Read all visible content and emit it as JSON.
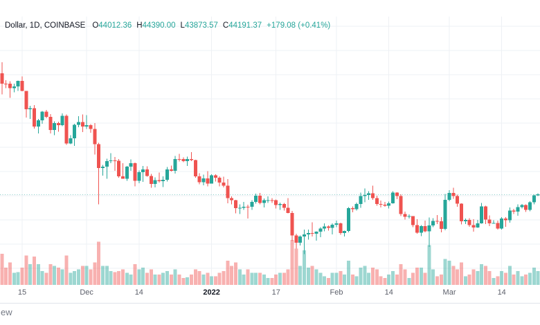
{
  "legend": {
    "title": "Dollar, 1D, COINBASE",
    "items": [
      {
        "label": "O",
        "value": "44012.36"
      },
      {
        "label": "H",
        "value": "44390.00"
      },
      {
        "label": "L",
        "value": "43873.57"
      },
      {
        "label": "C",
        "value": "44191.37"
      }
    ],
    "change": "+179.08 (+0.41%)"
  },
  "watermark": {
    "text": "ew"
  },
  "colors": {
    "up": "#26a69a",
    "down": "#ef5350",
    "volume_opacity": 0.45,
    "grid": "#eef0f4",
    "price_line": "#26a69a",
    "axis_text": "#5d606b",
    "year_text": "#131722",
    "legend_text": "#131722",
    "legend_value": "#26a69a",
    "separator": "#e0e3eb",
    "background": "#ffffff",
    "watermark_text": "#757a85"
  },
  "chart_data": {
    "type": "candlestick",
    "title": "Dollar, 1D, COINBASE",
    "xlabel": "",
    "ylabel": "",
    "legend_position": "top-left",
    "grid": "on",
    "price_line": 44191.37,
    "volume_note": "relative bar heights; volume pane unlabeled in screenshot",
    "x_axis_labels": [
      {
        "text": "15",
        "date": "2021-11-15",
        "emphasis": false
      },
      {
        "text": "Dec",
        "date": "2021-12-01",
        "emphasis": false
      },
      {
        "text": "14",
        "date": "2021-12-14",
        "emphasis": false
      },
      {
        "text": "2022",
        "date": "2022-01-01",
        "emphasis": true
      },
      {
        "text": "17",
        "date": "2022-01-17",
        "emphasis": false
      },
      {
        "text": "Feb",
        "date": "2022-02-01",
        "emphasis": false
      },
      {
        "text": "14",
        "date": "2022-02-14",
        "emphasis": false
      },
      {
        "text": "Mar",
        "date": "2022-03-01",
        "emphasis": false
      },
      {
        "text": "14",
        "date": "2022-03-14",
        "emphasis": false
      }
    ],
    "candles": [
      [
        "2021-11-10",
        66943,
        69000,
        62950,
        64995,
        36
      ],
      [
        "2021-11-11",
        64995,
        65600,
        64110,
        64949,
        20
      ],
      [
        "2021-11-12",
        64949,
        65450,
        62300,
        64155,
        26
      ],
      [
        "2021-11-13",
        64155,
        64985,
        63360,
        64469,
        14
      ],
      [
        "2021-11-14",
        64469,
        65550,
        63590,
        65519,
        15
      ],
      [
        "2021-11-15",
        65519,
        66339,
        63560,
        63606,
        20
      ],
      [
        "2021-11-16",
        63606,
        63617,
        58638,
        60161,
        34
      ],
      [
        "2021-11-17",
        60161,
        60840,
        58373,
        60368,
        24
      ],
      [
        "2021-11-18",
        60368,
        60948,
        56550,
        56942,
        33
      ],
      [
        "2021-11-19",
        56942,
        58320,
        55600,
        58119,
        24
      ],
      [
        "2021-11-20",
        58119,
        59859,
        57469,
        59697,
        16
      ],
      [
        "2021-11-21",
        59697,
        60029,
        58487,
        58730,
        14
      ],
      [
        "2021-11-22",
        58730,
        59266,
        55610,
        56289,
        24
      ],
      [
        "2021-11-23",
        56289,
        57875,
        55317,
        57569,
        22
      ],
      [
        "2021-11-24",
        57569,
        57803,
        55964,
        57187,
        20
      ],
      [
        "2021-11-25",
        57187,
        59398,
        57000,
        58960,
        18
      ],
      [
        "2021-11-26",
        58960,
        59183,
        53500,
        53726,
        34
      ],
      [
        "2021-11-27",
        53726,
        55280,
        53610,
        54721,
        14
      ],
      [
        "2021-11-28",
        54721,
        57445,
        53256,
        57274,
        16
      ],
      [
        "2021-11-29",
        57274,
        58865,
        56780,
        57776,
        18
      ],
      [
        "2021-11-30",
        57776,
        59200,
        55875,
        56950,
        22
      ],
      [
        "2021-12-01",
        56950,
        59053,
        56458,
        57184,
        22
      ],
      [
        "2021-12-02",
        57184,
        57375,
        55777,
        56486,
        18
      ],
      [
        "2021-12-03",
        56486,
        57600,
        51680,
        53601,
        26
      ],
      [
        "2021-12-04",
        53601,
        53859,
        42333,
        49152,
        50
      ],
      [
        "2021-12-05",
        49152,
        49699,
        47727,
        49396,
        22
      ],
      [
        "2021-12-06",
        49396,
        50891,
        47130,
        50441,
        22
      ],
      [
        "2021-12-07",
        50441,
        51936,
        50039,
        50588,
        16
      ],
      [
        "2021-12-08",
        50588,
        51175,
        48638,
        50471,
        15
      ],
      [
        "2021-12-09",
        50471,
        50797,
        47320,
        47545,
        16
      ],
      [
        "2021-12-10",
        47545,
        50015,
        47100,
        47140,
        18
      ],
      [
        "2021-12-11",
        47140,
        49485,
        46751,
        49389,
        14
      ],
      [
        "2021-12-12",
        49389,
        50777,
        48638,
        50053,
        12
      ],
      [
        "2021-12-13",
        50053,
        50189,
        45672,
        46702,
        24
      ],
      [
        "2021-12-14",
        46702,
        48650,
        46290,
        48343,
        18
      ],
      [
        "2021-12-15",
        48343,
        49500,
        46547,
        48864,
        20
      ],
      [
        "2021-12-16",
        48864,
        49436,
        47511,
        47632,
        14
      ],
      [
        "2021-12-17",
        47632,
        47995,
        45456,
        46133,
        18
      ],
      [
        "2021-12-18",
        46133,
        47392,
        45500,
        46834,
        12
      ],
      [
        "2021-12-19",
        46834,
        48280,
        46424,
        46681,
        12
      ],
      [
        "2021-12-20",
        46681,
        47537,
        45558,
        46914,
        14
      ],
      [
        "2021-12-21",
        46914,
        49328,
        46620,
        48889,
        16
      ],
      [
        "2021-12-22",
        48889,
        49576,
        48450,
        48588,
        12
      ],
      [
        "2021-12-23",
        48588,
        51375,
        48073,
        50838,
        18
      ],
      [
        "2021-12-24",
        50838,
        51810,
        50384,
        50820,
        12
      ],
      [
        "2021-12-25",
        50820,
        51170,
        50240,
        50429,
        8
      ],
      [
        "2021-12-26",
        50429,
        51280,
        49520,
        50809,
        9
      ],
      [
        "2021-12-27",
        50809,
        52088,
        50449,
        50640,
        12
      ],
      [
        "2021-12-28",
        50640,
        50704,
        47313,
        47588,
        18
      ],
      [
        "2021-12-29",
        47588,
        48139,
        46096,
        46464,
        16
      ],
      [
        "2021-12-30",
        46464,
        47900,
        45900,
        47178,
        12
      ],
      [
        "2021-12-31",
        47178,
        48548,
        45678,
        46216,
        14
      ],
      [
        "2022-01-01",
        46216,
        47954,
        46208,
        47742,
        10
      ],
      [
        "2022-01-02",
        47742,
        47990,
        46602,
        47311,
        10
      ],
      [
        "2022-01-03",
        47311,
        47578,
        45700,
        46430,
        14
      ],
      [
        "2022-01-04",
        46430,
        47510,
        45515,
        45832,
        16
      ],
      [
        "2022-01-05",
        45832,
        47070,
        42500,
        43451,
        28
      ],
      [
        "2022-01-06",
        43451,
        43800,
        42311,
        43082,
        22
      ],
      [
        "2022-01-07",
        43082,
        43153,
        40610,
        41566,
        26
      ],
      [
        "2022-01-08",
        41566,
        42300,
        40501,
        41679,
        18
      ],
      [
        "2022-01-09",
        41679,
        42786,
        41272,
        41864,
        12
      ],
      [
        "2022-01-10",
        41864,
        42250,
        39650,
        41822,
        18
      ],
      [
        "2022-01-11",
        41822,
        43100,
        41280,
        42735,
        14
      ],
      [
        "2022-01-12",
        42735,
        44322,
        42470,
        43902,
        14
      ],
      [
        "2022-01-13",
        43902,
        44450,
        42311,
        42560,
        14
      ],
      [
        "2022-01-14",
        42560,
        43436,
        41750,
        43073,
        12
      ],
      [
        "2022-01-15",
        43073,
        43800,
        42586,
        43092,
        8
      ],
      [
        "2022-01-16",
        43092,
        43452,
        42600,
        43079,
        8
      ],
      [
        "2022-01-17",
        43079,
        43190,
        41540,
        42200,
        12
      ],
      [
        "2022-01-18",
        42200,
        42655,
        41290,
        42352,
        14
      ],
      [
        "2022-01-19",
        42352,
        42550,
        41150,
        41660,
        14
      ],
      [
        "2022-01-20",
        41660,
        43480,
        40587,
        40680,
        18
      ],
      [
        "2022-01-21",
        40680,
        41100,
        35440,
        36445,
        52
      ],
      [
        "2022-01-22",
        36445,
        36805,
        34000,
        35071,
        42
      ],
      [
        "2022-01-23",
        35071,
        36480,
        34576,
        36276,
        22
      ],
      [
        "2022-01-24",
        36276,
        37550,
        32950,
        36680,
        40
      ],
      [
        "2022-01-25",
        36680,
        37545,
        35701,
        36950,
        20
      ],
      [
        "2022-01-26",
        36950,
        38920,
        36255,
        36820,
        22
      ],
      [
        "2022-01-27",
        36820,
        37234,
        35511,
        37160,
        18
      ],
      [
        "2022-01-28",
        37160,
        37990,
        36155,
        37784,
        14
      ],
      [
        "2022-01-29",
        37784,
        38720,
        37268,
        38166,
        10
      ],
      [
        "2022-01-30",
        38166,
        38359,
        37351,
        37917,
        8
      ],
      [
        "2022-01-31",
        37917,
        38744,
        36632,
        38483,
        14
      ],
      [
        "2022-02-01",
        38483,
        39265,
        38000,
        38743,
        14
      ],
      [
        "2022-02-02",
        38743,
        38855,
        36586,
        36924,
        16
      ],
      [
        "2022-02-03",
        36924,
        37352,
        36250,
        37311,
        12
      ],
      [
        "2022-02-04",
        37311,
        41772,
        37026,
        41574,
        28
      ],
      [
        "2022-02-05",
        41574,
        41947,
        40843,
        41382,
        12
      ],
      [
        "2022-02-06",
        41382,
        42656,
        41130,
        42380,
        10
      ],
      [
        "2022-02-07",
        42380,
        44501,
        41647,
        43839,
        20
      ],
      [
        "2022-02-08",
        43839,
        45308,
        42686,
        44042,
        22
      ],
      [
        "2022-02-09",
        44042,
        44800,
        43175,
        44372,
        14
      ],
      [
        "2022-02-10",
        44372,
        45821,
        43182,
        43495,
        20
      ],
      [
        "2022-02-11",
        43495,
        43920,
        42016,
        42373,
        18
      ],
      [
        "2022-02-12",
        42373,
        43045,
        41748,
        42217,
        10
      ],
      [
        "2022-02-13",
        42217,
        42760,
        41880,
        42053,
        8
      ],
      [
        "2022-02-14",
        42053,
        42842,
        41550,
        42535,
        12
      ],
      [
        "2022-02-15",
        42535,
        44751,
        42450,
        44544,
        16
      ],
      [
        "2022-02-16",
        44544,
        44549,
        43307,
        43873,
        12
      ],
      [
        "2022-02-17",
        43873,
        44184,
        40073,
        40515,
        24
      ],
      [
        "2022-02-18",
        40515,
        40959,
        39450,
        39974,
        18
      ],
      [
        "2022-02-19",
        39974,
        40444,
        39639,
        40079,
        8
      ],
      [
        "2022-02-20",
        40079,
        40125,
        38000,
        38380,
        14
      ],
      [
        "2022-02-21",
        38380,
        39494,
        36800,
        37008,
        20
      ],
      [
        "2022-02-22",
        37008,
        38429,
        36350,
        38230,
        20
      ],
      [
        "2022-02-23",
        38230,
        39249,
        37042,
        37250,
        14
      ],
      [
        "2022-02-24",
        37250,
        39843,
        34322,
        38327,
        46
      ],
      [
        "2022-02-25",
        38327,
        39683,
        38014,
        39219,
        18
      ],
      [
        "2022-02-26",
        39219,
        40300,
        38600,
        39116,
        10
      ],
      [
        "2022-02-27",
        39116,
        39886,
        37027,
        37699,
        12
      ],
      [
        "2022-02-28",
        37699,
        44225,
        37450,
        43160,
        30
      ],
      [
        "2022-03-01",
        43160,
        44949,
        42877,
        44421,
        28
      ],
      [
        "2022-03-02",
        44421,
        45400,
        43334,
        43892,
        22
      ],
      [
        "2022-03-03",
        43892,
        44101,
        41832,
        42454,
        18
      ],
      [
        "2022-03-04",
        42454,
        42527,
        38550,
        39148,
        26
      ],
      [
        "2022-03-05",
        39148,
        39613,
        38580,
        39397,
        10
      ],
      [
        "2022-03-06",
        39397,
        39693,
        38088,
        38420,
        12
      ],
      [
        "2022-03-07",
        38420,
        39547,
        37155,
        37988,
        18
      ],
      [
        "2022-03-08",
        37988,
        39362,
        37867,
        38730,
        16
      ],
      [
        "2022-03-09",
        38730,
        42594,
        38657,
        41941,
        24
      ],
      [
        "2022-03-10",
        41941,
        42052,
        38600,
        39422,
        22
      ],
      [
        "2022-03-11",
        39422,
        40236,
        38223,
        38729,
        16
      ],
      [
        "2022-03-12",
        38729,
        39310,
        38660,
        38807,
        8
      ],
      [
        "2022-03-13",
        38807,
        39283,
        37592,
        37777,
        10
      ],
      [
        "2022-03-14",
        37777,
        39887,
        37555,
        39671,
        16
      ],
      [
        "2022-03-15",
        39671,
        39887,
        38091,
        39338,
        14
      ],
      [
        "2022-03-16",
        39338,
        41718,
        38849,
        41114,
        22
      ],
      [
        "2022-03-17",
        41114,
        41478,
        40500,
        40917,
        12
      ],
      [
        "2022-03-18",
        40917,
        42325,
        40135,
        41757,
        16
      ],
      [
        "2022-03-19",
        41757,
        42400,
        41499,
        42201,
        10
      ],
      [
        "2022-03-20",
        42201,
        42301,
        40911,
        41262,
        12
      ],
      [
        "2022-03-21",
        41262,
        42900,
        41000,
        42700,
        14
      ],
      [
        "2022-03-22",
        42700,
        44100,
        42300,
        44012,
        20
      ],
      [
        "2022-03-23",
        44012.36,
        44390.0,
        43873.57,
        44191.37,
        16
      ]
    ]
  }
}
